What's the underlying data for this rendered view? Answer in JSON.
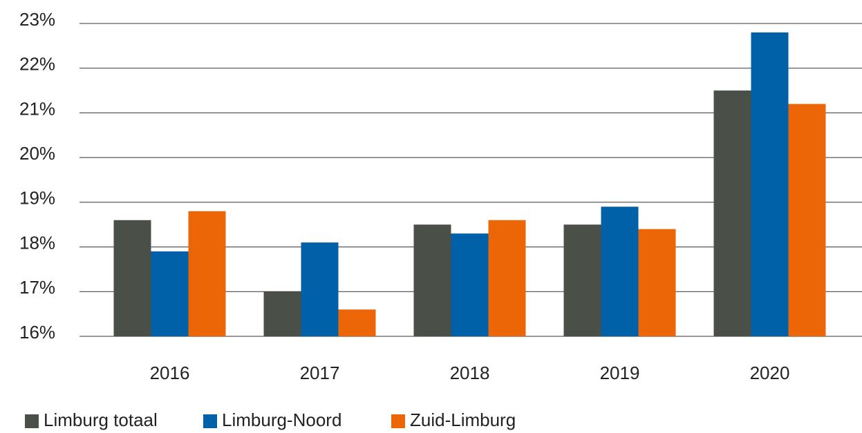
{
  "chart_data": {
    "type": "bar",
    "categories": [
      "2016",
      "2017",
      "2018",
      "2019",
      "2020"
    ],
    "series": [
      {
        "name": "Limburg totaal",
        "color": "#4a4f47",
        "values": [
          18.6,
          17.0,
          18.5,
          18.5,
          21.5
        ]
      },
      {
        "name": "Limburg-Noord",
        "color": "#0060a8",
        "values": [
          17.9,
          18.1,
          18.3,
          18.9,
          22.8
        ]
      },
      {
        "name": "Zuid-Limburg",
        "color": "#ec6608",
        "values": [
          18.8,
          16.6,
          18.6,
          18.4,
          21.2
        ]
      }
    ],
    "ylim": [
      16,
      23
    ],
    "yticks": [
      {
        "value": 16,
        "label": "16%"
      },
      {
        "value": 17,
        "label": "17%"
      },
      {
        "value": 18,
        "label": "18%"
      },
      {
        "value": 19,
        "label": "19%"
      },
      {
        "value": 20,
        "label": "20%"
      },
      {
        "value": 21,
        "label": "21%"
      },
      {
        "value": 22,
        "label": "22%"
      },
      {
        "value": 23,
        "label": "23%"
      }
    ],
    "grid": true,
    "legend": "bottom"
  }
}
